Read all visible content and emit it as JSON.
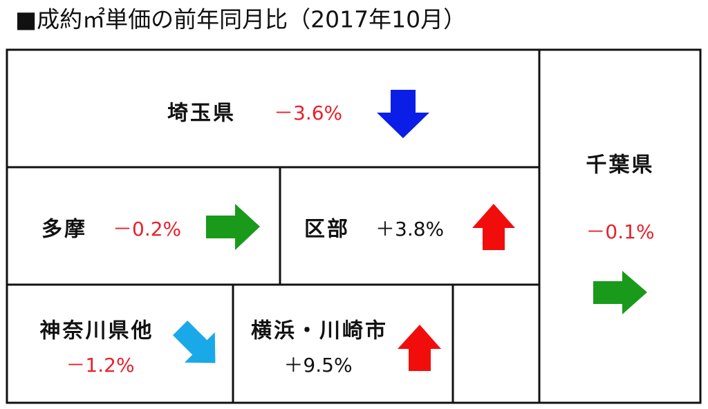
{
  "header": {
    "title": "■成約㎡単価の前年同月比（2017年10月）"
  },
  "regions": [
    {
      "name": "埼玉県",
      "change": "－3.6%"
    },
    {
      "name": "千葉県",
      "change": "－0.1%"
    },
    {
      "name": "多摩",
      "change": "－0.2%"
    },
    {
      "name": "区部",
      "change": "＋3.8%"
    },
    {
      "name": "神奈川県他",
      "change": "－1.2%"
    },
    {
      "name": "横浜・川崎市",
      "change": "＋9.5%"
    }
  ]
}
